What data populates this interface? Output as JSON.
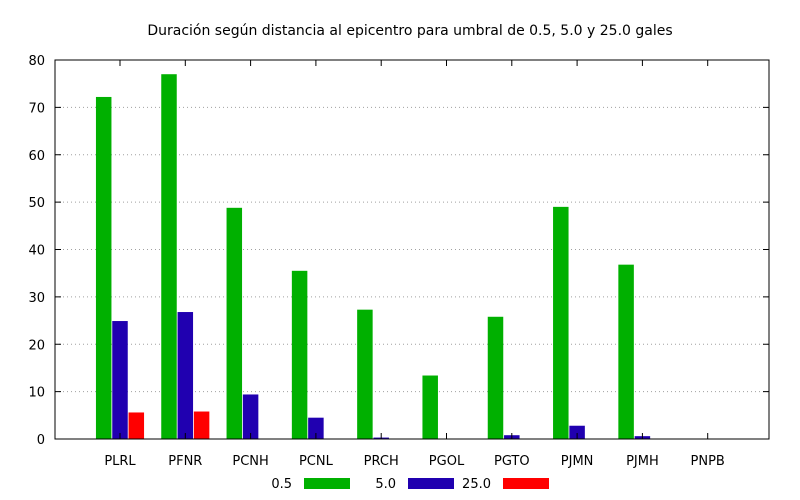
{
  "chart_data": {
    "type": "bar",
    "title": "Duración según distancia al epicentro para umbral de 0.5, 5.0 y 25.0 gales",
    "xlabel": "",
    "ylabel": "",
    "ylim": [
      0,
      80
    ],
    "yticks": [
      0,
      10,
      20,
      30,
      40,
      50,
      60,
      70,
      80
    ],
    "grid": true,
    "legend_position": "bottom",
    "categories": [
      "PLRL",
      "PFNR",
      "PCNH",
      "PCNL",
      "PRCH",
      "PGOL",
      "PGTO",
      "PJMN",
      "PJMH",
      "PNPB"
    ],
    "series": [
      {
        "name": "0.5",
        "color": "#00b000",
        "values": [
          72.2,
          77.0,
          48.8,
          35.5,
          27.3,
          13.4,
          25.8,
          49.0,
          36.8,
          0
        ]
      },
      {
        "name": "5.0",
        "color": "#2000b0",
        "values": [
          24.9,
          26.8,
          9.4,
          4.5,
          0.3,
          0,
          0.8,
          2.8,
          0.6,
          0
        ]
      },
      {
        "name": "25.0",
        "color": "#ff0000",
        "values": [
          5.6,
          5.8,
          0,
          0,
          0,
          0,
          0,
          0,
          0,
          0
        ]
      }
    ]
  }
}
